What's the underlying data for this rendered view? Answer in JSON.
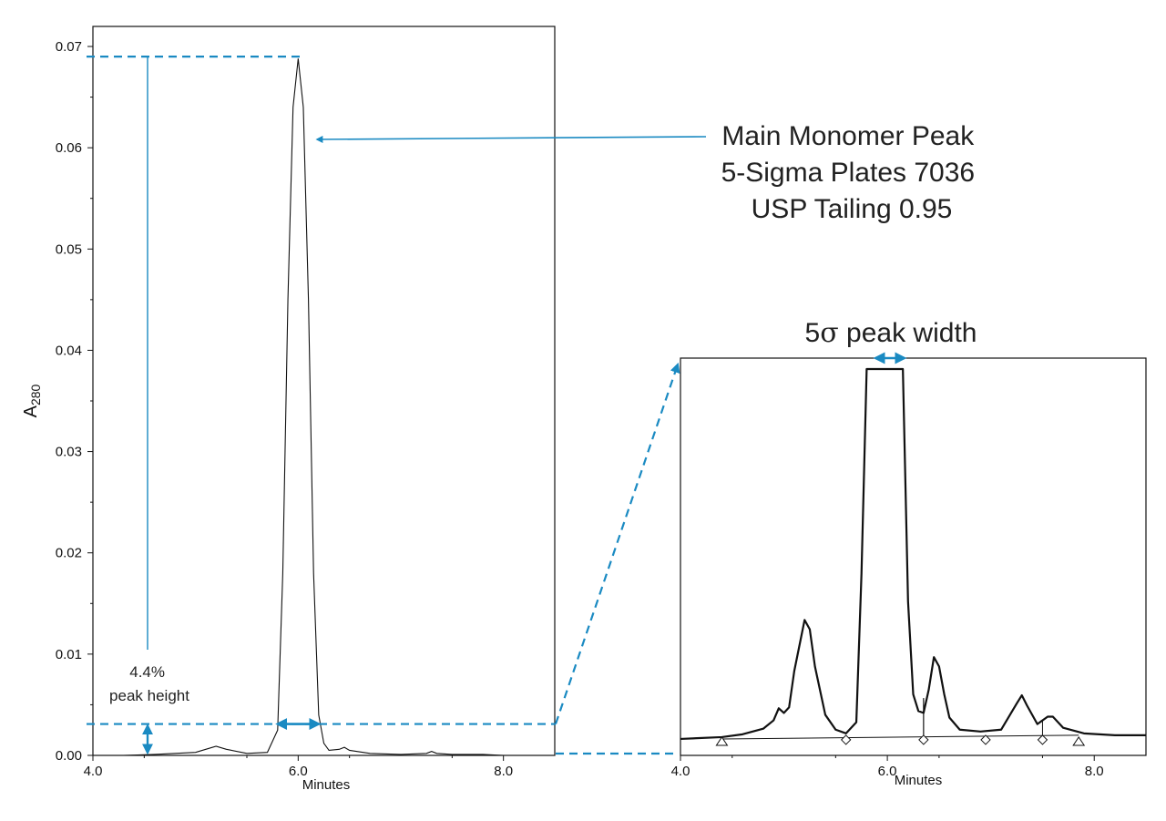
{
  "chart_data": [
    {
      "type": "line",
      "panel": "main",
      "ylabel_base": "A",
      "ylabel_sub": "280",
      "xlabel": "Minutes",
      "xlim": [
        4.0,
        8.5
      ],
      "ylim": [
        0,
        0.07
      ],
      "x_ticks": [
        "4.0",
        "6.0",
        "8.0"
      ],
      "y_ticks": [
        "0.00",
        "0.01",
        "0.02",
        "0.03",
        "0.04",
        "0.05",
        "0.06",
        "0.07"
      ],
      "series": [
        {
          "x": [
            4.0,
            4.3,
            4.6,
            4.8,
            5.0,
            5.1,
            5.2,
            5.3,
            5.5,
            5.7,
            5.8,
            5.85,
            5.9,
            5.95,
            6.0,
            6.05,
            6.1,
            6.15,
            6.2,
            6.25,
            6.3,
            6.4,
            6.45,
            6.5,
            6.7,
            7.0,
            7.25,
            7.3,
            7.35,
            7.5,
            7.8,
            8.0,
            8.5
          ],
          "y": [
            0.0,
            0.0,
            0.0001,
            0.0002,
            0.0003,
            0.0006,
            0.0009,
            0.0006,
            0.0002,
            0.0003,
            0.0025,
            0.018,
            0.045,
            0.064,
            0.0688,
            0.064,
            0.045,
            0.018,
            0.004,
            0.0012,
            0.0005,
            0.0006,
            0.0008,
            0.0005,
            0.0002,
            0.0001,
            0.0002,
            0.0004,
            0.0002,
            0.0001,
            0.0001,
            0.0,
            0.0
          ]
        }
      ],
      "peak_height": 0.069,
      "pct_level": 0.0031,
      "width_marker": [
        5.8,
        6.2
      ]
    },
    {
      "type": "line",
      "panel": "zoom",
      "xlabel": "Minutes",
      "xlim": [
        4.0,
        8.5
      ],
      "x_ticks": [
        "4.0",
        "6.0",
        "8.0"
      ],
      "series": [
        {
          "x": [
            4.0,
            4.4,
            4.6,
            4.8,
            4.9,
            4.95,
            5.0,
            5.05,
            5.1,
            5.2,
            5.25,
            5.3,
            5.4,
            5.5,
            5.6,
            5.7,
            5.75,
            5.8,
            6.15,
            6.2,
            6.25,
            6.3,
            6.35,
            6.4,
            6.45,
            6.5,
            6.55,
            6.6,
            6.7,
            6.9,
            7.1,
            7.25,
            7.3,
            7.35,
            7.45,
            7.55,
            7.6,
            7.7,
            7.9,
            8.2,
            8.5
          ],
          "y": [
            0.2,
            0.4,
            0.7,
            1.3,
            2.2,
            3.5,
            3.0,
            3.6,
            7.5,
            13.0,
            12.0,
            8.0,
            2.8,
            1.2,
            0.8,
            2.0,
            18.0,
            40.0,
            40.0,
            15.0,
            5.0,
            3.2,
            3.0,
            5.5,
            9.0,
            8.0,
            5.0,
            2.5,
            1.2,
            1.0,
            1.2,
            4.0,
            4.9,
            3.8,
            1.8,
            2.6,
            2.6,
            1.4,
            0.8,
            0.6,
            0.6
          ]
        }
      ],
      "baseline_start": 4.4,
      "baseline_end": 7.85,
      "drop_line_x": 6.35,
      "start_markers": [
        4.4,
        7.85
      ],
      "valley_markers": [
        5.6,
        6.35,
        6.95,
        7.5
      ],
      "width_marker": [
        5.85,
        6.2
      ]
    }
  ],
  "annotations": {
    "main_peak_lines": [
      "Main Monomer Peak",
      "5-Sigma Plates 7036",
      "USP Tailing 0.95"
    ],
    "pct_label_lines": [
      "4.4%",
      "peak height"
    ],
    "width_title_prefix": "5",
    "width_title_sigma": "σ",
    "width_title_suffix": " peak width"
  },
  "colors": {
    "accent": "#1a8ac2",
    "trace": "#111111"
  }
}
